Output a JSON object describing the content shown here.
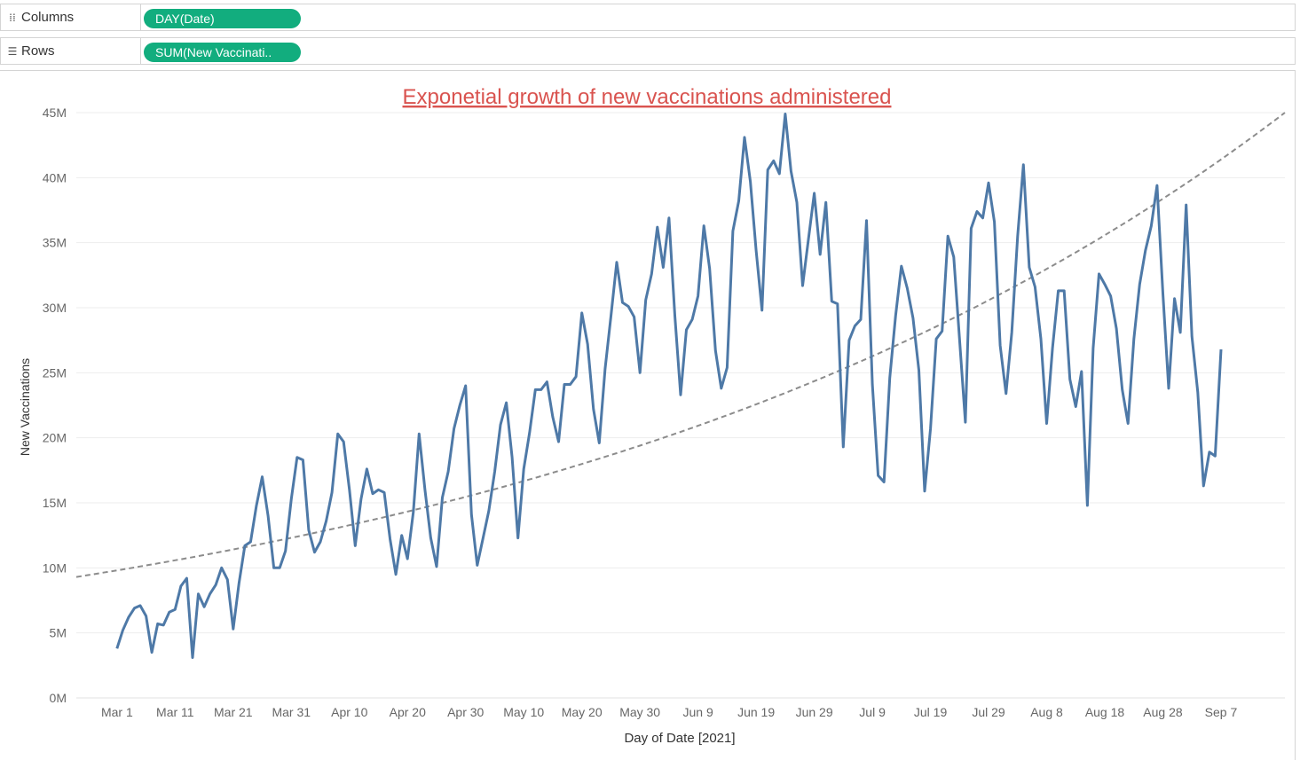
{
  "shelves": {
    "columns": {
      "label": "Columns",
      "icon": "columns-icon",
      "pill": "DAY(Date)"
    },
    "rows": {
      "label": "Rows",
      "icon": "rows-icon",
      "pill": "SUM(New Vaccinati.."
    }
  },
  "colors": {
    "line": "#4e79a7",
    "trend": "#8c8c8c",
    "title": "#d9534f",
    "pill": "#12ad7e"
  },
  "chart_data": {
    "type": "line",
    "title": "Exponetial growth of new vaccinations administered",
    "xlabel": "Day of Date [2021]",
    "ylabel": "New Vaccinations",
    "x_start": "2021-03-01",
    "xlim": [
      "2021-02-22",
      "2021-09-18"
    ],
    "x_ticks": [
      "Mar 1",
      "Mar 11",
      "Mar 21",
      "Mar 31",
      "Apr 10",
      "Apr 20",
      "Apr 30",
      "May 10",
      "May 20",
      "May 30",
      "Jun 9",
      "Jun 19",
      "Jun 29",
      "Jul 9",
      "Jul 19",
      "Jul 29",
      "Aug 8",
      "Aug 18",
      "Aug 28",
      "Sep 7"
    ],
    "y_ticks": [
      "0M",
      "5M",
      "10M",
      "15M",
      "20M",
      "25M",
      "30M",
      "35M",
      "40M",
      "45M"
    ],
    "ylim": [
      0,
      45
    ],
    "y_unit": "millions",
    "grid": true,
    "series": [
      {
        "name": "SUM(New Vaccinations)",
        "values": [
          3.8,
          5.2,
          6.2,
          6.9,
          7.1,
          6.3,
          3.5,
          5.7,
          5.6,
          6.6,
          6.8,
          8.6,
          9.2,
          3.1,
          8.0,
          7.0,
          8.0,
          8.7,
          10.0,
          9.1,
          5.3,
          8.8,
          11.7,
          12.0,
          14.8,
          17.0,
          14.0,
          10.0,
          10.0,
          11.3,
          15.3,
          18.5,
          18.3,
          12.9,
          11.2,
          12.0,
          13.6,
          15.8,
          20.3,
          19.7,
          16.0,
          11.7,
          15.3,
          17.6,
          15.7,
          16.0,
          15.8,
          12.2,
          9.5,
          12.5,
          10.7,
          14.3,
          20.3,
          16.0,
          12.3,
          10.1,
          15.4,
          17.4,
          20.7,
          22.5,
          24.0,
          14.1,
          10.2,
          12.3,
          14.4,
          17.4,
          21.0,
          22.7,
          18.5,
          12.3,
          17.6,
          20.4,
          23.7,
          23.7,
          24.3,
          21.6,
          19.7,
          24.1,
          24.1,
          24.7,
          29.6,
          27.2,
          22.2,
          19.6,
          25.3,
          29.3,
          33.5,
          30.4,
          30.1,
          29.3,
          25.0,
          30.6,
          32.6,
          36.2,
          33.1,
          36.9,
          29.4,
          23.3,
          28.3,
          29.1,
          30.9,
          36.3,
          33.0,
          26.7,
          23.8,
          25.4,
          35.9,
          38.2,
          43.1,
          39.7,
          34.4,
          29.8,
          40.6,
          41.3,
          40.3,
          44.9,
          40.5,
          38.1,
          31.7,
          35.3,
          38.8,
          34.1,
          38.1,
          30.5,
          30.3,
          19.3,
          27.5,
          28.6,
          29.1,
          36.7,
          24.1,
          17.1,
          16.6,
          24.6,
          29.4,
          33.2,
          31.5,
          29.2,
          25.2,
          15.9,
          20.7,
          27.6,
          28.2,
          35.5,
          33.9,
          27.6,
          21.2,
          36.1,
          37.4,
          36.9,
          39.6,
          36.6,
          27.1,
          23.4,
          28.1,
          35.5,
          41.0,
          33.1,
          31.6,
          27.6,
          21.1,
          26.9,
          31.3,
          31.3,
          24.5,
          22.4,
          25.1,
          14.8,
          26.9,
          32.6,
          31.8,
          30.9,
          28.4,
          23.7,
          21.1,
          27.6,
          31.8,
          34.4,
          36.3,
          39.4,
          31.1,
          23.8,
          30.7,
          28.1,
          37.9,
          27.8,
          23.5,
          16.3,
          18.9,
          18.6,
          26.8
        ]
      }
    ],
    "trend": {
      "type": "exponential",
      "style": "dashed",
      "y_at_xlim": [
        9.3,
        45.0
      ]
    }
  }
}
